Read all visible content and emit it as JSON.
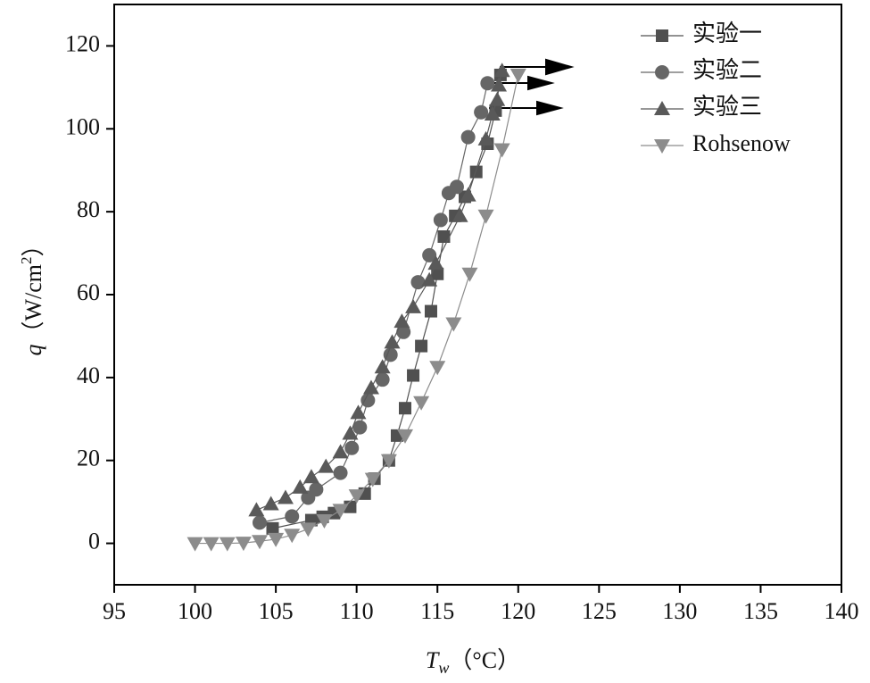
{
  "chart_data": {
    "type": "line",
    "xlabel": {
      "symbol": "T",
      "subscript": "w",
      "unit": "（°C）"
    },
    "ylabel": {
      "symbol": "q",
      "unit": "（W/cm",
      "superscript": "2",
      "close": "）"
    },
    "xlim": [
      95,
      140
    ],
    "xticks": [
      95,
      100,
      105,
      110,
      115,
      120,
      125,
      130,
      135,
      140
    ],
    "ylim": [
      -10,
      130
    ],
    "yticks": [
      0,
      20,
      40,
      60,
      80,
      100,
      120
    ],
    "legend": "upper right",
    "series": [
      {
        "name": "实验一",
        "color": "#505050",
        "marker": "square",
        "x": [
          104.8,
          107.2,
          107.9,
          108.6,
          109.6,
          110.5,
          111.1,
          112,
          112.5,
          113,
          113.5,
          114,
          114.6,
          115,
          115.4,
          116.1,
          116.7,
          117.4,
          118.1,
          118.6,
          118.9
        ],
        "values": [
          3.6,
          5.6,
          6.4,
          7.3,
          8.8,
          12,
          15.6,
          20,
          26,
          32.6,
          40.5,
          47.6,
          56,
          65,
          74,
          79,
          83.6,
          89.6,
          96.4,
          104.4,
          113
        ]
      },
      {
        "name": "实验二",
        "color": "#666666",
        "marker": "circle",
        "x": [
          104,
          106,
          107,
          107.5,
          109,
          109.7,
          110.2,
          110.7,
          111.6,
          112.1,
          112.9,
          113.8,
          114.5,
          115.2,
          115.7,
          116.2,
          116.9,
          117.7,
          118.1
        ],
        "values": [
          5,
          6.5,
          11,
          13,
          17,
          23,
          28,
          34.5,
          39.5,
          45.5,
          51,
          63,
          69.5,
          78,
          84.5,
          86,
          98,
          104,
          111
        ]
      },
      {
        "name": "实验三",
        "color": "#595959",
        "marker": "triangle",
        "x": [
          103.8,
          104.7,
          105.6,
          106.5,
          107.2,
          108.1,
          109,
          109.6,
          110.1,
          110.9,
          111.6,
          112.2,
          112.8,
          113.5,
          114.5,
          114.9,
          116.4,
          116.9,
          118,
          118.4,
          118.7,
          118.8,
          119
        ],
        "values": [
          8,
          9.5,
          11,
          13.5,
          16,
          18.5,
          22,
          26.5,
          31.5,
          37.5,
          42.5,
          48.5,
          53.5,
          57,
          63.5,
          67.5,
          79,
          84,
          97.5,
          103.5,
          107,
          110.5,
          114
        ]
      },
      {
        "name": "Rohsenow",
        "color": "#8c8c8c",
        "marker": "down-triangle",
        "x": [
          100,
          101,
          102,
          103,
          104,
          105,
          106,
          107,
          108,
          109,
          110,
          111,
          112,
          113,
          114,
          115,
          116,
          117,
          118,
          119,
          120
        ],
        "values": [
          0,
          0,
          0,
          0.1,
          0.5,
          1,
          2,
          3.5,
          5.5,
          8,
          11.5,
          15.5,
          20,
          26,
          34,
          42.5,
          53,
          65,
          79,
          95,
          113
        ]
      }
    ]
  }
}
